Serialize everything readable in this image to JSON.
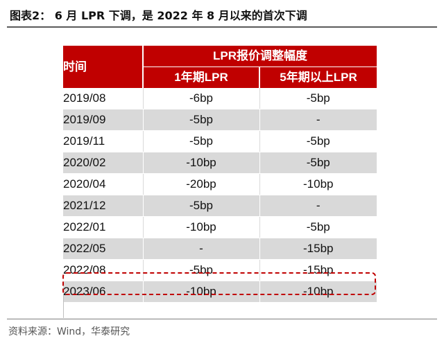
{
  "title": "图表2：  6 月 LPR 下调，是 2022 年 8 月以来的首次下调",
  "table": {
    "header_time": "时间",
    "header_group": "LPR报价调整幅度",
    "header_col1": "1年期LPR",
    "header_col2": "5年期以上LPR",
    "rows": [
      {
        "date": "2019/08",
        "lpr1y": "-6bp",
        "lpr5y": "-5bp"
      },
      {
        "date": "2019/09",
        "lpr1y": "-5bp",
        "lpr5y": "-"
      },
      {
        "date": "2019/11",
        "lpr1y": "-5bp",
        "lpr5y": "-5bp"
      },
      {
        "date": "2020/02",
        "lpr1y": "-10bp",
        "lpr5y": "-5bp"
      },
      {
        "date": "2020/04",
        "lpr1y": "-20bp",
        "lpr5y": "-10bp"
      },
      {
        "date": "2021/12",
        "lpr1y": "-5bp",
        "lpr5y": "-"
      },
      {
        "date": "2022/01",
        "lpr1y": "-10bp",
        "lpr5y": "-5bp"
      },
      {
        "date": "2022/05",
        "lpr1y": "-",
        "lpr5y": "-15bp"
      },
      {
        "date": "2022/08",
        "lpr1y": "-5bp",
        "lpr5y": "-15bp"
      },
      {
        "date": "2023/06",
        "lpr1y": "-10bp",
        "lpr5y": "-10bp"
      }
    ]
  },
  "highlight_color": "#c00000",
  "header_color": "#c00000",
  "source": "资料来源：Wind，华泰研究"
}
